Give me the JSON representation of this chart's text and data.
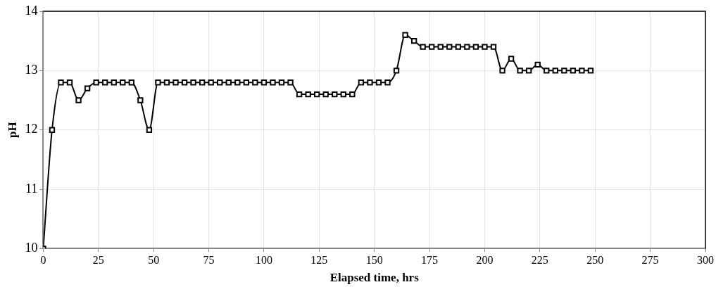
{
  "chart_data": {
    "type": "line",
    "xlabel": "Elapsed time, hrs",
    "ylabel": "pH",
    "x": [
      0,
      4,
      8,
      12,
      16,
      20,
      24,
      28,
      32,
      36,
      40,
      44,
      48,
      52,
      56,
      60,
      64,
      68,
      72,
      76,
      80,
      84,
      88,
      92,
      96,
      100,
      104,
      108,
      112,
      116,
      120,
      124,
      128,
      132,
      136,
      140,
      144,
      148,
      152,
      156,
      160,
      164,
      168,
      172,
      176,
      180,
      184,
      188,
      192,
      196,
      200,
      204,
      208,
      212,
      216,
      220,
      224,
      228,
      232,
      236,
      240,
      244,
      248
    ],
    "series": [
      {
        "color": "#000000",
        "values": [
          10,
          12,
          12.8,
          12.8,
          12.5,
          12.7,
          12.8,
          12.8,
          12.8,
          12.8,
          12.8,
          12.5,
          12.0,
          12.8,
          12.8,
          12.8,
          12.8,
          12.8,
          12.8,
          12.8,
          12.8,
          12.8,
          12.8,
          12.8,
          12.8,
          12.8,
          12.8,
          12.8,
          12.8,
          12.6,
          12.6,
          12.6,
          12.6,
          12.6,
          12.6,
          12.6,
          12.8,
          12.8,
          12.8,
          12.8,
          13.0,
          13.6,
          13.5,
          13.4,
          13.4,
          13.4,
          13.4,
          13.4,
          13.4,
          13.4,
          13.4,
          13.4,
          13.0,
          13.2,
          13.0,
          13.0,
          13.1,
          13.0,
          13.0,
          13.0,
          13.0,
          13.0,
          13.0
        ]
      }
    ],
    "xlim": [
      0,
      300
    ],
    "xticks": [
      0,
      25,
      50,
      75,
      100,
      125,
      150,
      175,
      200,
      225,
      250,
      275,
      300
    ],
    "ylim": [
      10,
      14
    ],
    "yticks": [
      10,
      11,
      12,
      13,
      14
    ],
    "grid": true,
    "legend": false,
    "marker": "square",
    "line_style": "solid"
  }
}
